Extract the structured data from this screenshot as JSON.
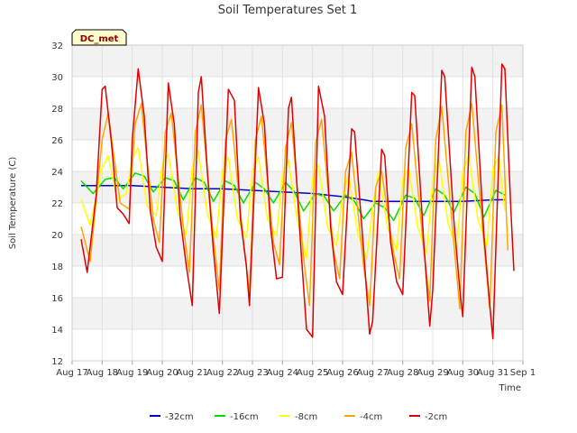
{
  "chart_data": {
    "type": "line",
    "title": "Soil Temperatures Set 1",
    "xlabel": "Time",
    "ylabel": "Soil Temperature (C)",
    "badge": "DC_met",
    "xlim": [
      17,
      32
    ],
    "ylim": [
      12,
      32
    ],
    "yticks": [
      12,
      14,
      16,
      18,
      20,
      22,
      24,
      26,
      28,
      30,
      32
    ],
    "xticks": [
      {
        "v": 17,
        "label": "Aug 17"
      },
      {
        "v": 18,
        "label": "Aug 18"
      },
      {
        "v": 19,
        "label": "Aug 19"
      },
      {
        "v": 20,
        "label": "Aug 20"
      },
      {
        "v": 21,
        "label": "Aug 21"
      },
      {
        "v": 22,
        "label": "Aug 22"
      },
      {
        "v": 23,
        "label": "Aug 23"
      },
      {
        "v": 24,
        "label": "Aug 24"
      },
      {
        "v": 25,
        "label": "Aug 25"
      },
      {
        "v": 26,
        "label": "Aug 26"
      },
      {
        "v": 27,
        "label": "Aug 27"
      },
      {
        "v": 28,
        "label": "Aug 28"
      },
      {
        "v": 29,
        "label": "Aug 29"
      },
      {
        "v": 30,
        "label": "Aug 30"
      },
      {
        "v": 31,
        "label": "Aug 31"
      },
      {
        "v": 32,
        "label": "Sep 1"
      }
    ],
    "grid": true,
    "legend_position": "bottom",
    "series": [
      {
        "name": "-32cm",
        "color": "#0000cc",
        "points": [
          [
            17.3,
            23.1
          ],
          [
            18,
            23.1
          ],
          [
            19,
            23.1
          ],
          [
            20,
            23.0
          ],
          [
            21,
            22.9
          ],
          [
            22,
            22.9
          ],
          [
            23,
            22.8
          ],
          [
            24,
            22.7
          ],
          [
            25,
            22.6
          ],
          [
            26,
            22.4
          ],
          [
            26.7,
            22.2
          ],
          [
            27,
            22.1
          ],
          [
            27.5,
            22.1
          ],
          [
            28,
            22.1
          ],
          [
            29,
            22.1
          ],
          [
            30,
            22.1
          ],
          [
            31,
            22.2
          ],
          [
            31.4,
            22.2
          ]
        ]
      },
      {
        "name": "-16cm",
        "color": "#00e000",
        "points": [
          [
            17.3,
            23.4
          ],
          [
            17.7,
            22.6
          ],
          [
            18.1,
            23.5
          ],
          [
            18.4,
            23.6
          ],
          [
            18.7,
            22.9
          ],
          [
            19.1,
            23.9
          ],
          [
            19.4,
            23.7
          ],
          [
            19.7,
            22.7
          ],
          [
            20.1,
            23.6
          ],
          [
            20.4,
            23.4
          ],
          [
            20.7,
            22.2
          ],
          [
            21.1,
            23.6
          ],
          [
            21.4,
            23.3
          ],
          [
            21.7,
            22.1
          ],
          [
            22.1,
            23.4
          ],
          [
            22.4,
            23.1
          ],
          [
            22.7,
            22.0
          ],
          [
            23.1,
            23.3
          ],
          [
            23.4,
            22.9
          ],
          [
            23.7,
            22.0
          ],
          [
            24.1,
            23.3
          ],
          [
            24.4,
            22.7
          ],
          [
            24.7,
            21.5
          ],
          [
            25.1,
            22.6
          ],
          [
            25.4,
            22.4
          ],
          [
            25.7,
            21.5
          ],
          [
            26.1,
            22.5
          ],
          [
            26.4,
            22.1
          ],
          [
            26.7,
            21.0
          ],
          [
            27.1,
            22.0
          ],
          [
            27.4,
            21.7
          ],
          [
            27.7,
            20.9
          ],
          [
            28.1,
            22.5
          ],
          [
            28.4,
            22.3
          ],
          [
            28.7,
            21.2
          ],
          [
            29.1,
            22.9
          ],
          [
            29.4,
            22.5
          ],
          [
            29.7,
            21.4
          ],
          [
            30.1,
            23.0
          ],
          [
            30.4,
            22.6
          ],
          [
            30.7,
            21.1
          ],
          [
            31.1,
            22.8
          ],
          [
            31.4,
            22.5
          ]
        ]
      },
      {
        "name": "-8cm",
        "color": "#ffff00",
        "points": [
          [
            17.3,
            22.2
          ],
          [
            17.6,
            20.6
          ],
          [
            18.0,
            24.2
          ],
          [
            18.2,
            25.0
          ],
          [
            18.5,
            22.2
          ],
          [
            18.8,
            22.6
          ],
          [
            19.0,
            24.8
          ],
          [
            19.2,
            25.5
          ],
          [
            19.5,
            21.8
          ],
          [
            19.8,
            21.2
          ],
          [
            20.0,
            24.5
          ],
          [
            20.2,
            25.1
          ],
          [
            20.5,
            21.5
          ],
          [
            20.8,
            20.0
          ],
          [
            21.0,
            24.3
          ],
          [
            21.2,
            25.3
          ],
          [
            21.5,
            21.3
          ],
          [
            21.8,
            19.8
          ],
          [
            22.0,
            24.0
          ],
          [
            22.2,
            24.9
          ],
          [
            22.5,
            21.0
          ],
          [
            22.8,
            19.8
          ],
          [
            23.0,
            24.0
          ],
          [
            23.2,
            24.9
          ],
          [
            23.5,
            21.0
          ],
          [
            23.8,
            19.9
          ],
          [
            24.0,
            23.8
          ],
          [
            24.2,
            24.7
          ],
          [
            24.5,
            20.8
          ],
          [
            24.8,
            18.5
          ],
          [
            25.0,
            23.6
          ],
          [
            25.2,
            24.4
          ],
          [
            25.5,
            20.5
          ],
          [
            25.8,
            19.3
          ],
          [
            26.0,
            22.5
          ],
          [
            26.2,
            23.8
          ],
          [
            26.5,
            20.1
          ],
          [
            26.8,
            18.5
          ],
          [
            27.0,
            21.8
          ],
          [
            27.2,
            24.0
          ],
          [
            27.5,
            20.4
          ],
          [
            27.8,
            19.0
          ],
          [
            28.0,
            23.5
          ],
          [
            28.2,
            24.2
          ],
          [
            28.5,
            20.5
          ],
          [
            28.8,
            18.8
          ],
          [
            29.0,
            23.5
          ],
          [
            29.2,
            24.8
          ],
          [
            29.5,
            20.8
          ],
          [
            29.8,
            19.0
          ],
          [
            30.0,
            24.0
          ],
          [
            30.2,
            25.0
          ],
          [
            30.5,
            21.0
          ],
          [
            30.8,
            19.3
          ],
          [
            31.0,
            24.2
          ],
          [
            31.2,
            24.9
          ],
          [
            31.4,
            21.5
          ]
        ]
      },
      {
        "name": "-4cm",
        "color": "#ffa500",
        "points": [
          [
            17.3,
            20.5
          ],
          [
            17.6,
            18.3
          ],
          [
            18.0,
            26.0
          ],
          [
            18.2,
            27.7
          ],
          [
            18.6,
            22.0
          ],
          [
            18.9,
            21.6
          ],
          [
            19.1,
            27.0
          ],
          [
            19.3,
            28.3
          ],
          [
            19.7,
            21.0
          ],
          [
            19.9,
            19.5
          ],
          [
            20.1,
            26.5
          ],
          [
            20.3,
            27.7
          ],
          [
            20.7,
            20.5
          ],
          [
            20.9,
            17.6
          ],
          [
            21.1,
            26.5
          ],
          [
            21.3,
            28.2
          ],
          [
            21.7,
            19.8
          ],
          [
            21.9,
            16.5
          ],
          [
            22.1,
            26.0
          ],
          [
            22.3,
            27.3
          ],
          [
            22.7,
            19.6
          ],
          [
            22.9,
            16.3
          ],
          [
            23.1,
            26.0
          ],
          [
            23.3,
            27.5
          ],
          [
            23.7,
            19.5
          ],
          [
            23.9,
            18.1
          ],
          [
            24.1,
            25.5
          ],
          [
            24.3,
            27.1
          ],
          [
            24.7,
            18.5
          ],
          [
            24.9,
            15.5
          ],
          [
            25.1,
            25.8
          ],
          [
            25.3,
            27.3
          ],
          [
            25.7,
            19.0
          ],
          [
            25.9,
            17.2
          ],
          [
            26.1,
            24.0
          ],
          [
            26.3,
            25.2
          ],
          [
            26.7,
            18.0
          ],
          [
            26.9,
            15.5
          ],
          [
            27.1,
            23.0
          ],
          [
            27.3,
            24.0
          ],
          [
            27.7,
            18.8
          ],
          [
            27.9,
            17.2
          ],
          [
            28.1,
            25.5
          ],
          [
            28.3,
            27.0
          ],
          [
            28.7,
            19.0
          ],
          [
            28.9,
            15.8
          ],
          [
            29.1,
            26.0
          ],
          [
            29.3,
            28.1
          ],
          [
            29.7,
            19.5
          ],
          [
            29.9,
            15.3
          ],
          [
            30.1,
            26.5
          ],
          [
            30.3,
            28.3
          ],
          [
            30.7,
            19.5
          ],
          [
            30.9,
            15.3
          ],
          [
            31.1,
            26.5
          ],
          [
            31.3,
            28.2
          ],
          [
            31.5,
            19.0
          ]
        ]
      },
      {
        "name": "-2cm",
        "color": "#e00000",
        "points": [
          [
            17.3,
            19.7
          ],
          [
            17.5,
            17.6
          ],
          [
            17.8,
            22.5
          ],
          [
            18.0,
            29.2
          ],
          [
            18.1,
            29.4
          ],
          [
            18.3,
            26.0
          ],
          [
            18.5,
            21.7
          ],
          [
            18.7,
            21.3
          ],
          [
            18.9,
            20.7
          ],
          [
            19.0,
            26.0
          ],
          [
            19.2,
            30.5
          ],
          [
            19.4,
            27.5
          ],
          [
            19.6,
            21.5
          ],
          [
            19.8,
            19.2
          ],
          [
            20.0,
            18.3
          ],
          [
            20.2,
            29.6
          ],
          [
            20.4,
            27.0
          ],
          [
            20.6,
            21.0
          ],
          [
            20.8,
            18.0
          ],
          [
            21.0,
            15.5
          ],
          [
            21.2,
            29.0
          ],
          [
            21.3,
            30.0
          ],
          [
            21.5,
            24.0
          ],
          [
            21.7,
            19.0
          ],
          [
            21.9,
            15.0
          ],
          [
            22.2,
            29.2
          ],
          [
            22.4,
            28.5
          ],
          [
            22.6,
            21.0
          ],
          [
            22.8,
            18.0
          ],
          [
            22.9,
            15.5
          ],
          [
            23.2,
            29.3
          ],
          [
            23.4,
            27.0
          ],
          [
            23.6,
            20.5
          ],
          [
            23.8,
            17.2
          ],
          [
            24.0,
            17.3
          ],
          [
            24.2,
            28.0
          ],
          [
            24.3,
            28.7
          ],
          [
            24.6,
            19.5
          ],
          [
            24.8,
            14.0
          ],
          [
            25.0,
            13.5
          ],
          [
            25.2,
            29.4
          ],
          [
            25.4,
            27.5
          ],
          [
            25.6,
            20.5
          ],
          [
            25.8,
            17.0
          ],
          [
            26.0,
            16.2
          ],
          [
            26.3,
            26.7
          ],
          [
            26.4,
            26.5
          ],
          [
            26.7,
            19.0
          ],
          [
            26.9,
            13.7
          ],
          [
            27.0,
            14.5
          ],
          [
            27.3,
            25.4
          ],
          [
            27.4,
            25.0
          ],
          [
            27.6,
            19.5
          ],
          [
            27.8,
            17.0
          ],
          [
            28.0,
            16.2
          ],
          [
            28.3,
            29.0
          ],
          [
            28.4,
            28.8
          ],
          [
            28.7,
            19.5
          ],
          [
            28.9,
            14.2
          ],
          [
            29.0,
            16.5
          ],
          [
            29.3,
            30.4
          ],
          [
            29.4,
            30.0
          ],
          [
            29.7,
            21.0
          ],
          [
            29.9,
            16.5
          ],
          [
            30.0,
            14.8
          ],
          [
            30.3,
            30.6
          ],
          [
            30.4,
            30.0
          ],
          [
            30.7,
            20.0
          ],
          [
            30.9,
            15.5
          ],
          [
            31.0,
            13.4
          ],
          [
            31.3,
            30.8
          ],
          [
            31.4,
            30.5
          ],
          [
            31.6,
            21.5
          ],
          [
            31.7,
            17.7
          ]
        ]
      }
    ]
  }
}
